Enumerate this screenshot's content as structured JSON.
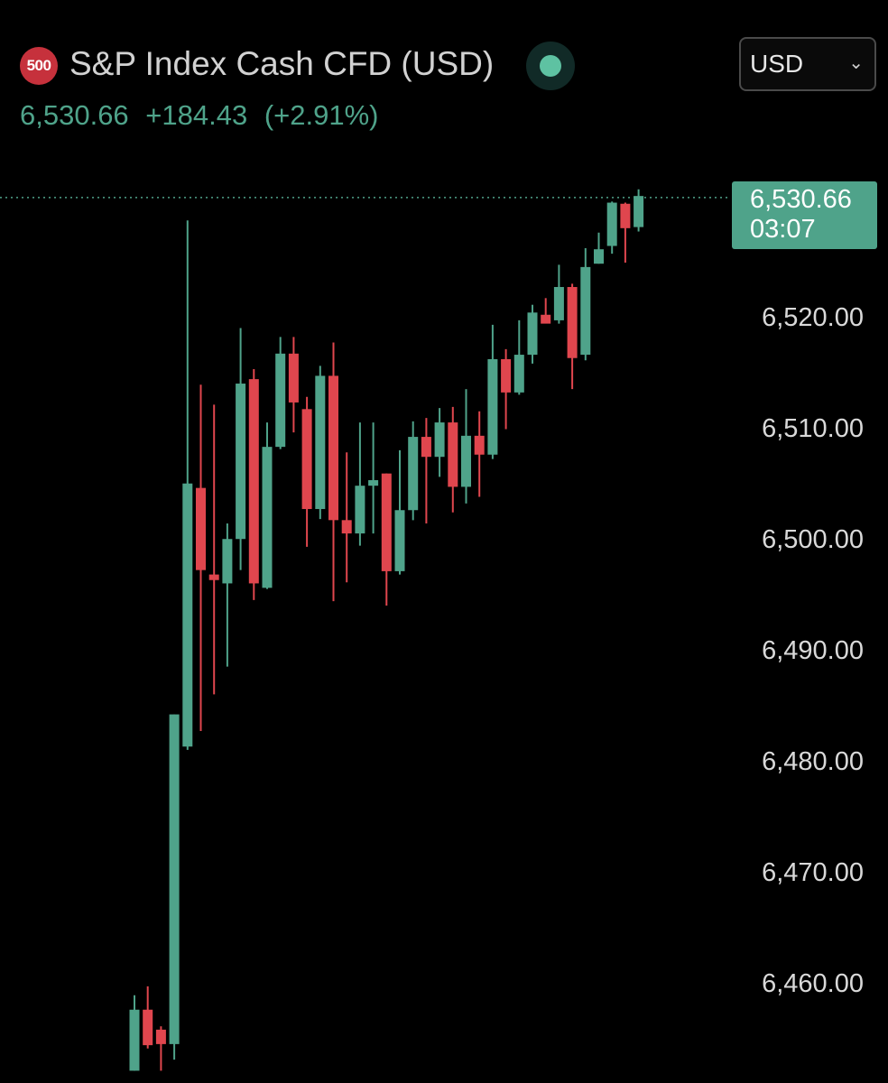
{
  "header": {
    "logo_text": "500",
    "title": "S&P Index Cash CFD (USD)",
    "last_price": "6,530.66",
    "change": "+184.43",
    "change_pct": "(+2.91%)",
    "currency": "USD"
  },
  "price_tag": {
    "price": "6,530.66",
    "countdown": "03:07"
  },
  "colors": {
    "up": "#4fa38a",
    "down": "#e0464e",
    "background": "#000000",
    "axis_text": "#d9d9d9"
  },
  "chart_data": {
    "type": "candlestick",
    "y_axis_labels": [
      "6,520.00",
      "6,510.00",
      "6,500.00",
      "6,490.00",
      "6,480.00",
      "6,470.00",
      "6,460.00"
    ],
    "y_ticks": [
      6520,
      6510,
      6500,
      6490,
      6480,
      6470,
      6460
    ],
    "last_price": 6530.66,
    "candles": [
      {
        "o": 6452.0,
        "h": 6458.8,
        "l": 6452.0,
        "c": 6457.5
      },
      {
        "o": 6457.5,
        "h": 6459.6,
        "l": 6454.0,
        "c": 6454.3
      },
      {
        "o": 6455.7,
        "h": 6456.0,
        "l": 6452.0,
        "c": 6454.4
      },
      {
        "o": 6454.4,
        "h": 6484.1,
        "l": 6453.0,
        "c": 6484.1
      },
      {
        "o": 6481.2,
        "h": 6528.6,
        "l": 6480.9,
        "c": 6504.9
      },
      {
        "o": 6504.5,
        "h": 6513.8,
        "l": 6482.6,
        "c": 6497.1
      },
      {
        "o": 6496.7,
        "h": 6512.0,
        "l": 6485.9,
        "c": 6496.2
      },
      {
        "o": 6495.9,
        "h": 6501.3,
        "l": 6488.4,
        "c": 6499.9
      },
      {
        "o": 6499.9,
        "h": 6518.9,
        "l": 6497.1,
        "c": 6513.9
      },
      {
        "o": 6514.3,
        "h": 6515.2,
        "l": 6494.4,
        "c": 6495.9
      },
      {
        "o": 6495.5,
        "h": 6510.4,
        "l": 6495.4,
        "c": 6508.2
      },
      {
        "o": 6508.2,
        "h": 6518.1,
        "l": 6508.0,
        "c": 6516.6
      },
      {
        "o": 6516.6,
        "h": 6518.1,
        "l": 6509.5,
        "c": 6512.2
      },
      {
        "o": 6511.6,
        "h": 6512.7,
        "l": 6499.2,
        "c": 6502.6
      },
      {
        "o": 6502.6,
        "h": 6515.5,
        "l": 6501.7,
        "c": 6514.6
      },
      {
        "o": 6514.6,
        "h": 6517.6,
        "l": 6494.3,
        "c": 6501.6
      },
      {
        "o": 6501.6,
        "h": 6507.7,
        "l": 6496.0,
        "c": 6500.4
      },
      {
        "o": 6500.4,
        "h": 6510.4,
        "l": 6499.3,
        "c": 6504.7
      },
      {
        "o": 6504.7,
        "h": 6510.4,
        "l": 6500.4,
        "c": 6505.2
      },
      {
        "o": 6505.8,
        "h": 6505.8,
        "l": 6493.9,
        "c": 6497.0
      },
      {
        "o": 6497.0,
        "h": 6507.9,
        "l": 6496.7,
        "c": 6502.5
      },
      {
        "o": 6502.5,
        "h": 6510.5,
        "l": 6501.6,
        "c": 6509.1
      },
      {
        "o": 6509.1,
        "h": 6510.8,
        "l": 6501.3,
        "c": 6507.3
      },
      {
        "o": 6507.3,
        "h": 6511.7,
        "l": 6505.5,
        "c": 6510.4
      },
      {
        "o": 6510.4,
        "h": 6511.8,
        "l": 6502.3,
        "c": 6504.6
      },
      {
        "o": 6504.6,
        "h": 6513.4,
        "l": 6503.1,
        "c": 6509.2
      },
      {
        "o": 6509.2,
        "h": 6511.4,
        "l": 6503.7,
        "c": 6507.5
      },
      {
        "o": 6507.5,
        "h": 6519.2,
        "l": 6507.1,
        "c": 6516.1
      },
      {
        "o": 6516.1,
        "h": 6517.0,
        "l": 6509.8,
        "c": 6513.1
      },
      {
        "o": 6513.1,
        "h": 6519.6,
        "l": 6512.9,
        "c": 6516.5
      },
      {
        "o": 6516.5,
        "h": 6521.0,
        "l": 6515.7,
        "c": 6520.3
      },
      {
        "o": 6520.1,
        "h": 6521.6,
        "l": 6519.7,
        "c": 6519.3
      },
      {
        "o": 6519.6,
        "h": 6524.6,
        "l": 6519.3,
        "c": 6522.6
      },
      {
        "o": 6522.6,
        "h": 6522.9,
        "l": 6513.4,
        "c": 6516.2
      },
      {
        "o": 6516.5,
        "h": 6526.1,
        "l": 6516.0,
        "c": 6524.4
      },
      {
        "o": 6524.7,
        "h": 6527.5,
        "l": 6524.7,
        "c": 6526.0
      },
      {
        "o": 6526.3,
        "h": 6530.3,
        "l": 6525.6,
        "c": 6530.2
      },
      {
        "o": 6530.1,
        "h": 6530.2,
        "l": 6524.8,
        "c": 6527.9
      },
      {
        "o": 6528.0,
        "h": 6531.4,
        "l": 6527.6,
        "c": 6530.8
      }
    ]
  }
}
